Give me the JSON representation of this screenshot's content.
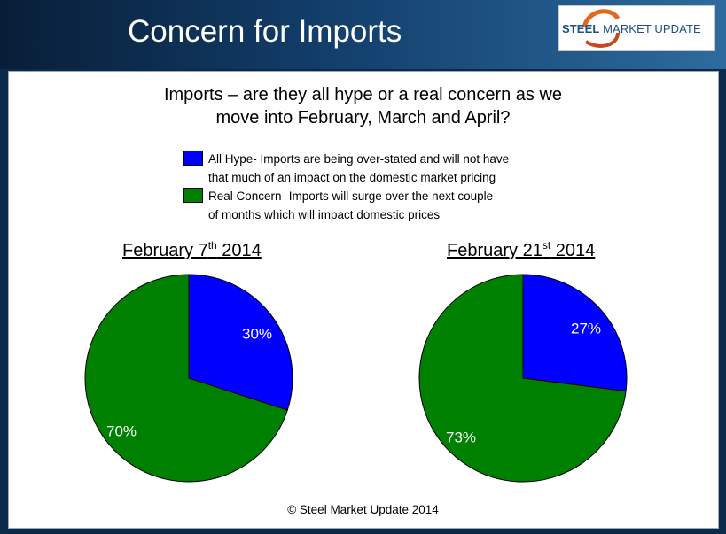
{
  "slide": {
    "title": "Concern for Imports",
    "logo_text_bold": "STEEL",
    "logo_text_rest": " MARKET UPDATE",
    "footer": "© Steel Market Update 2014"
  },
  "chart_data": {
    "type": "pie",
    "title_lines": [
      "Imports – are they all hype or a real concern as we",
      "move into February, March and April?"
    ],
    "legend": [
      {
        "color": "#0000ff",
        "lines": [
          "All Hype- Imports are being over-stated and will not have",
          "that much of an impact on the domestic market pricing"
        ]
      },
      {
        "color": "#008000",
        "lines": [
          "Real Concern- Imports will surge over the next couple",
          "of months which will impact domestic prices"
        ]
      }
    ],
    "charts": [
      {
        "title_main": "February 7",
        "title_sup": "th",
        "title_tail": " 2014",
        "slices": [
          {
            "category": "All Hype",
            "value": 30,
            "label": "30%",
            "color": "#0000ff"
          },
          {
            "category": "Real Concern",
            "value": 70,
            "label": "70%",
            "color": "#008000"
          }
        ]
      },
      {
        "title_main": "February 21",
        "title_sup": "st",
        "title_tail": " 2014",
        "slices": [
          {
            "category": "All Hype",
            "value": 27,
            "label": "27%",
            "color": "#0000ff"
          },
          {
            "category": "Real Concern",
            "value": 73,
            "label": "73%",
            "color": "#008000"
          }
        ]
      }
    ]
  }
}
